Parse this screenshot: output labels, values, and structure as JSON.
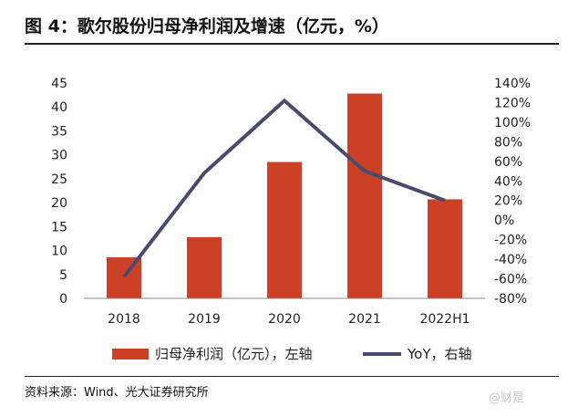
{
  "header": {
    "title": "图 4：歌尔股份归母净利润及增速（亿元，%）"
  },
  "footer": {
    "source": "资料来源：Wind、光大证券研究所",
    "watermark": "@财是"
  },
  "chart_data": {
    "type": "bar+line",
    "categories": [
      "2018",
      "2019",
      "2020",
      "2021",
      "2022H1"
    ],
    "series": [
      {
        "name": "归母净利润（亿元），左轴",
        "type": "bar",
        "axis": "left",
        "values": [
          8.6,
          12.8,
          28.5,
          42.8,
          20.7
        ],
        "color": "#cc4125"
      },
      {
        "name": "YoY，右轴",
        "type": "line",
        "axis": "right",
        "values": [
          -58,
          48,
          122,
          50,
          20
        ],
        "color": "#4a4a6e"
      }
    ],
    "y_left": {
      "ylim": [
        0,
        45
      ],
      "ticks": [
        "0",
        "5",
        "10",
        "15",
        "20",
        "25",
        "30",
        "35",
        "40",
        "45"
      ]
    },
    "y_right": {
      "ylim": [
        -80,
        140
      ],
      "ticks": [
        "-80%",
        "-60%",
        "-40%",
        "-20%",
        "0%",
        "20%",
        "40%",
        "60%",
        "80%",
        "100%",
        "120%",
        "140%"
      ]
    },
    "legend": {
      "placement": "bottom"
    },
    "grid": false
  }
}
